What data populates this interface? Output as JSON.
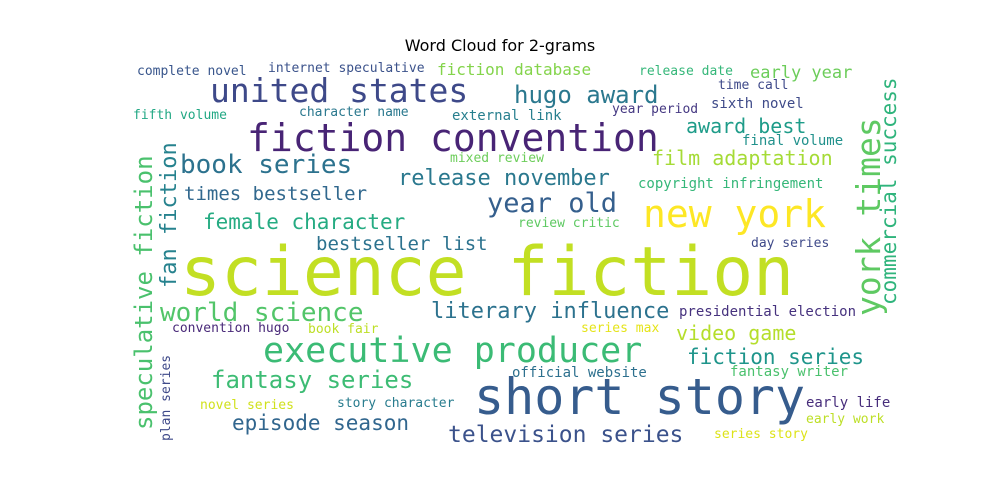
{
  "chart_data": {
    "type": "wordcloud",
    "title": "Word Cloud for 2-grams",
    "words": [
      {
        "text": "science fiction",
        "color": "#c2df23"
      },
      {
        "text": "short story",
        "color": "#365c8d"
      },
      {
        "text": "fiction convention",
        "color": "#482475"
      },
      {
        "text": "new york",
        "color": "#fde725"
      },
      {
        "text": "executive producer",
        "color": "#3bbb75"
      },
      {
        "text": "united states",
        "color": "#3e4989"
      },
      {
        "text": "york times",
        "color": "#5ec962"
      },
      {
        "text": "year old",
        "color": "#355f8d"
      },
      {
        "text": "book series",
        "color": "#2c728e"
      },
      {
        "text": "world science",
        "color": "#52c569"
      },
      {
        "text": "hugo award",
        "color": "#2a788e"
      },
      {
        "text": "speculative fiction",
        "color": "#4ac16d"
      },
      {
        "text": "fantasy series",
        "color": "#3dbc74"
      },
      {
        "text": "television series",
        "color": "#3b528b"
      },
      {
        "text": "literary influence",
        "color": "#2c728e"
      },
      {
        "text": "release november",
        "color": "#2a788e"
      },
      {
        "text": "fan fiction",
        "color": "#26828e"
      },
      {
        "text": "commercial success",
        "color": "#2fb47c"
      },
      {
        "text": "female character",
        "color": "#25ab82"
      },
      {
        "text": "episode season",
        "color": "#31668e"
      },
      {
        "text": "fiction series",
        "color": "#1f958b"
      },
      {
        "text": "film adaptation",
        "color": "#a5db36"
      },
      {
        "text": "award best",
        "color": "#1e9c89"
      },
      {
        "text": "video game",
        "color": "#b5de2b"
      },
      {
        "text": "times bestseller",
        "color": "#31688e"
      },
      {
        "text": "bestseller list",
        "color": "#2c728e"
      },
      {
        "text": "early year",
        "color": "#6ccd5a"
      },
      {
        "text": "fiction database",
        "color": "#84d44b"
      },
      {
        "text": "copyright infringement",
        "color": "#35b779"
      },
      {
        "text": "official website",
        "color": "#2d708e"
      },
      {
        "text": "presidential election",
        "color": "#46327e"
      },
      {
        "text": "sixth novel",
        "color": "#3e4a89"
      },
      {
        "text": "final volume",
        "color": "#21918c"
      },
      {
        "text": "fantasy writer",
        "color": "#4ac16d"
      },
      {
        "text": "external link",
        "color": "#277f8e"
      },
      {
        "text": "early life",
        "color": "#472d7b"
      },
      {
        "text": "story character",
        "color": "#287c8e"
      },
      {
        "text": "complete novel",
        "color": "#39568c"
      },
      {
        "text": "internet speculative",
        "color": "#3b528b"
      },
      {
        "text": "release date",
        "color": "#35b779"
      },
      {
        "text": "time call",
        "color": "#3e4989"
      },
      {
        "text": "year period",
        "color": "#453882"
      },
      {
        "text": "character name",
        "color": "#2a788e"
      },
      {
        "text": "fifth volume",
        "color": "#22a884"
      },
      {
        "text": "mixed review",
        "color": "#6ccd5a"
      },
      {
        "text": "review critic",
        "color": "#5ec962"
      },
      {
        "text": "day series",
        "color": "#3e4989"
      },
      {
        "text": "convention hugo",
        "color": "#482878"
      },
      {
        "text": "book fair",
        "color": "#bddf26"
      },
      {
        "text": "series max",
        "color": "#e5e419"
      },
      {
        "text": "novel series",
        "color": "#d0e11c"
      },
      {
        "text": "plan series",
        "color": "#3e4989"
      },
      {
        "text": "series story",
        "color": "#dde318"
      },
      {
        "text": "early work",
        "color": "#bddf26"
      }
    ]
  }
}
